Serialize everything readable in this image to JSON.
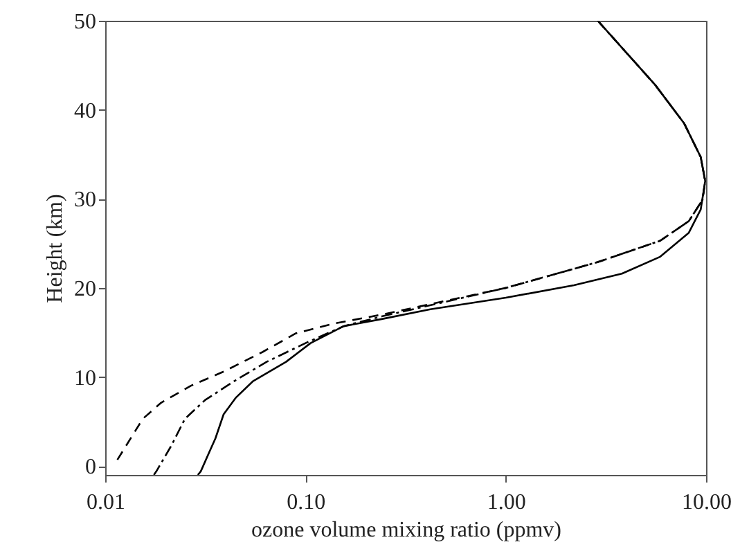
{
  "chart_data": {
    "type": "line",
    "xlabel": "ozone volume mixing ratio (ppmv)",
    "ylabel": "Height (km)",
    "log": "x",
    "grid": false,
    "marker": "none",
    "xlim": [
      0.01,
      10
    ],
    "xticks": [
      {
        "value": 0.01,
        "label": "0.01"
      },
      {
        "value": 0.1,
        "label": "0.10"
      },
      {
        "value": 1,
        "label": "1.00"
      },
      {
        "value": 10,
        "label": "10.00"
      }
    ],
    "ylim": [
      -1,
      50
    ],
    "yticks": [
      0,
      10,
      20,
      30,
      40,
      50
    ],
    "series": [
      {
        "color": "#000000",
        "line_style": "solid",
        "x": [
          0.029,
          0.03,
          0.033,
          0.0355,
          0.039,
          0.045,
          0.0545,
          0.08,
          0.106,
          0.155,
          0.24,
          0.42,
          1.0,
          2.19,
          3.8,
          5.9,
          8.2,
          9.4,
          9.9,
          9.4,
          7.76,
          5.57,
          2.88
        ],
        "values": [
          -1,
          -0.6,
          1.5,
          3.1,
          5.8,
          7.7,
          9.5,
          11.7,
          13.8,
          15.7,
          16.5,
          17.6,
          18.9,
          20.3,
          21.6,
          23.5,
          26.2,
          28.8,
          32,
          34.7,
          38.5,
          42.8,
          50
        ]
      },
      {
        "color": "#000000",
        "line_style": "dashed",
        "x": [
          0.0115,
          0.0154,
          0.019,
          0.0267,
          0.039,
          0.061,
          0.0895,
          0.139,
          0.24,
          1.0,
          2.88,
          5.9,
          8.2,
          9.6,
          9.9,
          9.4,
          7.76,
          5.57,
          2.88
        ],
        "values": [
          0.7,
          5.3,
          7.1,
          9.0,
          10.6,
          12.8,
          14.9,
          16.0,
          17.0,
          20.0,
          22.9,
          25.3,
          27.5,
          29.9,
          32,
          34.7,
          38.5,
          42.8,
          50
        ]
      },
      {
        "color": "#000000",
        "line_style": "dotted",
        "x": [
          0.0175,
          0.018,
          0.0214,
          0.025,
          0.0315,
          0.0438,
          0.064,
          0.1,
          0.155,
          0.24,
          1.0,
          2.88,
          5.9,
          8.2,
          9.6,
          9.9,
          9.4,
          7.76,
          5.57,
          2.88
        ],
        "values": [
          -1,
          -0.6,
          2.3,
          5.3,
          7.4,
          9.5,
          11.7,
          13.8,
          15.7,
          16.8,
          20.0,
          22.9,
          25.3,
          27.5,
          29.9,
          32,
          34.7,
          38.5,
          42.8,
          50
        ]
      }
    ]
  }
}
